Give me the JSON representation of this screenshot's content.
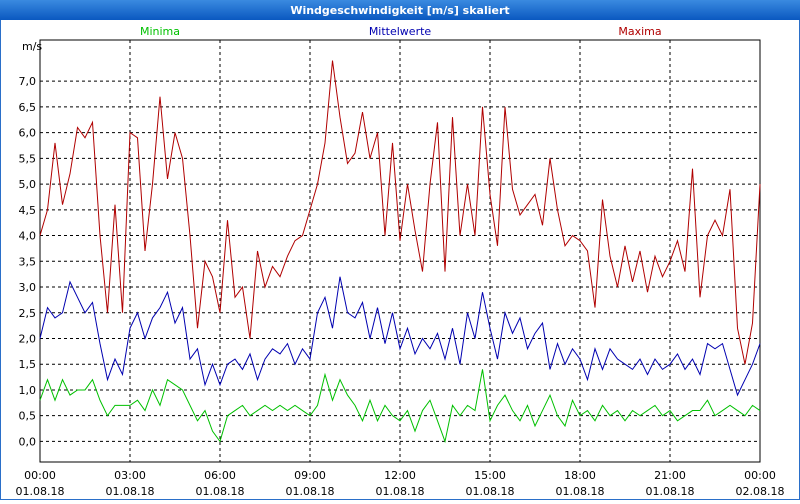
{
  "chart_data": {
    "type": "line",
    "title": "Windgeschwindigkeit [m/s] skaliert",
    "y_axis_label": "m/s",
    "grid": true,
    "x": [
      0,
      0.25,
      0.5,
      0.75,
      1,
      1.25,
      1.5,
      1.75,
      2,
      2.25,
      2.5,
      2.75,
      3,
      3.25,
      3.5,
      3.75,
      4,
      4.25,
      4.5,
      4.75,
      5,
      5.25,
      5.5,
      5.75,
      6,
      6.25,
      6.5,
      6.75,
      7,
      7.25,
      7.5,
      7.75,
      8,
      8.25,
      8.5,
      8.75,
      9,
      9.25,
      9.5,
      9.75,
      10,
      10.25,
      10.5,
      10.75,
      11,
      11.25,
      11.5,
      11.75,
      12,
      12.25,
      12.5,
      12.75,
      13,
      13.25,
      13.5,
      13.75,
      14,
      14.25,
      14.5,
      14.75,
      15,
      15.25,
      15.5,
      15.75,
      16,
      16.25,
      16.5,
      16.75,
      17,
      17.25,
      17.5,
      17.75,
      18,
      18.25,
      18.5,
      18.75,
      19,
      19.25,
      19.5,
      19.75,
      20,
      20.25,
      20.5,
      20.75,
      21,
      21.25,
      21.5,
      21.75,
      22,
      22.25,
      22.5,
      22.75,
      23,
      23.25,
      23.5,
      23.75,
      24
    ],
    "xlim": [
      0,
      24
    ],
    "xticks": [
      {
        "value": 0,
        "label": "00:00"
      },
      {
        "value": 3,
        "label": "03:00"
      },
      {
        "value": 6,
        "label": "06:00"
      },
      {
        "value": 9,
        "label": "09:00"
      },
      {
        "value": 12,
        "label": "12:00"
      },
      {
        "value": 15,
        "label": "15:00"
      },
      {
        "value": 18,
        "label": "18:00"
      },
      {
        "value": 21,
        "label": "21:00"
      },
      {
        "value": 24,
        "label": "00:00"
      }
    ],
    "xtick_dates": [
      "01.08.18",
      "01.08.18",
      "01.08.18",
      "01.08.18",
      "01.08.18",
      "01.08.18",
      "01.08.18",
      "01.08.18",
      "02.08.18"
    ],
    "ylim": [
      -0.4,
      7.8
    ],
    "yticks": [
      {
        "value": 0,
        "label": "0,0"
      },
      {
        "value": 0.5,
        "label": "0,5"
      },
      {
        "value": 1,
        "label": "1,0"
      },
      {
        "value": 1.5,
        "label": "1,5"
      },
      {
        "value": 2,
        "label": "2,0"
      },
      {
        "value": 2.5,
        "label": "2,5"
      },
      {
        "value": 3,
        "label": "3,0"
      },
      {
        "value": 3.5,
        "label": "3,5"
      },
      {
        "value": 4,
        "label": "4,0"
      },
      {
        "value": 4.5,
        "label": "4,5"
      },
      {
        "value": 5,
        "label": "5,0"
      },
      {
        "value": 5.5,
        "label": "5,5"
      },
      {
        "value": 6,
        "label": "6,0"
      },
      {
        "value": 6.5,
        "label": "6,5"
      },
      {
        "value": 7,
        "label": "7,0"
      }
    ],
    "series": [
      {
        "name": "Minima",
        "color": "#00c000",
        "values": [
          0.8,
          1.2,
          0.8,
          1.2,
          0.9,
          1.0,
          1.0,
          1.2,
          0.8,
          0.5,
          0.7,
          0.7,
          0.7,
          0.8,
          0.6,
          1.0,
          0.7,
          1.2,
          1.1,
          1.0,
          0.7,
          0.4,
          0.6,
          0.2,
          0.0,
          0.5,
          0.6,
          0.7,
          0.5,
          0.6,
          0.7,
          0.6,
          0.7,
          0.6,
          0.7,
          0.6,
          0.5,
          0.7,
          1.3,
          0.8,
          1.2,
          0.9,
          0.7,
          0.4,
          0.8,
          0.4,
          0.7,
          0.5,
          0.4,
          0.6,
          0.2,
          0.6,
          0.8,
          0.4,
          0.0,
          0.7,
          0.5,
          0.7,
          0.6,
          1.4,
          0.4,
          0.7,
          0.9,
          0.6,
          0.4,
          0.7,
          0.3,
          0.6,
          0.9,
          0.5,
          0.3,
          0.8,
          0.5,
          0.6,
          0.4,
          0.7,
          0.5,
          0.6,
          0.4,
          0.6,
          0.5,
          0.6,
          0.7,
          0.5,
          0.6,
          0.4,
          0.5,
          0.6,
          0.6,
          0.8,
          0.5,
          0.6,
          0.7,
          0.6,
          0.5,
          0.7,
          0.6
        ]
      },
      {
        "name": "Mittelwerte",
        "color": "#0000b0",
        "values": [
          2.0,
          2.6,
          2.4,
          2.5,
          3.1,
          2.8,
          2.5,
          2.7,
          1.9,
          1.2,
          1.6,
          1.3,
          2.2,
          2.5,
          2.0,
          2.4,
          2.6,
          2.9,
          2.3,
          2.6,
          1.6,
          1.8,
          1.1,
          1.5,
          1.1,
          1.5,
          1.6,
          1.4,
          1.7,
          1.2,
          1.6,
          1.8,
          1.7,
          1.9,
          1.5,
          1.8,
          1.6,
          2.5,
          2.8,
          2.2,
          3.2,
          2.5,
          2.4,
          2.7,
          2.0,
          2.6,
          1.9,
          2.5,
          1.8,
          2.2,
          1.7,
          2.0,
          1.8,
          2.1,
          1.6,
          2.2,
          1.5,
          2.5,
          2.0,
          2.9,
          2.2,
          1.6,
          2.5,
          2.1,
          2.4,
          1.8,
          2.1,
          2.3,
          1.4,
          1.9,
          1.5,
          1.8,
          1.6,
          1.2,
          1.8,
          1.4,
          1.8,
          1.6,
          1.5,
          1.4,
          1.6,
          1.3,
          1.6,
          1.4,
          1.5,
          1.7,
          1.4,
          1.6,
          1.3,
          1.9,
          1.8,
          1.9,
          1.4,
          0.9,
          1.2,
          1.5,
          1.9
        ]
      },
      {
        "name": "Maxima",
        "color": "#b00000",
        "values": [
          4.0,
          4.5,
          5.8,
          4.6,
          5.2,
          6.1,
          5.9,
          6.2,
          4.0,
          2.5,
          4.6,
          2.5,
          6.0,
          5.9,
          3.7,
          5.0,
          6.7,
          5.1,
          6.0,
          5.5,
          4.0,
          2.2,
          3.5,
          3.2,
          2.5,
          4.3,
          2.8,
          3.0,
          2.0,
          3.7,
          3.0,
          3.4,
          3.2,
          3.6,
          3.9,
          4.0,
          4.5,
          5.0,
          5.8,
          7.4,
          6.3,
          5.4,
          5.6,
          6.4,
          5.5,
          6.0,
          4.0,
          5.8,
          3.9,
          5.0,
          4.1,
          3.3,
          5.0,
          6.2,
          3.3,
          6.3,
          4.0,
          5.0,
          4.0,
          6.5,
          4.8,
          3.8,
          6.5,
          4.9,
          4.4,
          4.6,
          4.8,
          4.2,
          5.5,
          4.5,
          3.8,
          4.0,
          3.9,
          3.7,
          2.6,
          4.7,
          3.6,
          3.0,
          3.8,
          3.1,
          3.7,
          2.9,
          3.6,
          3.2,
          3.5,
          3.9,
          3.3,
          5.3,
          2.8,
          4.0,
          4.3,
          4.0,
          4.9,
          2.2,
          1.5,
          2.3,
          5.0
        ]
      }
    ]
  }
}
